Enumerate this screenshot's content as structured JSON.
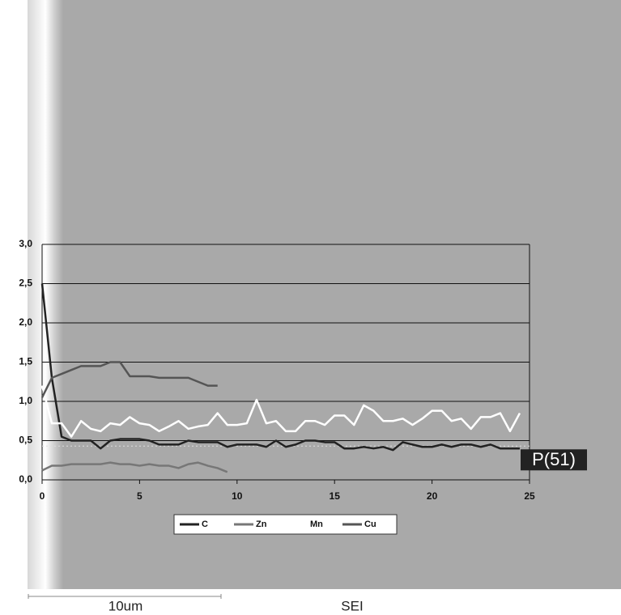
{
  "chart_data": {
    "type": "line",
    "x": [
      0,
      0.5,
      1,
      1.5,
      2,
      2.5,
      3,
      3.5,
      4,
      4.5,
      5,
      5.5,
      6,
      6.5,
      7,
      7.5,
      8,
      8.5,
      9,
      9.5,
      10,
      10.5,
      11,
      11.5,
      12,
      12.5,
      13,
      13.5,
      14,
      14.5,
      15,
      15.5,
      16,
      16.5,
      17,
      17.5,
      18,
      18.5,
      19,
      19.5,
      20,
      20.5,
      21,
      21.5,
      22,
      22.5,
      23,
      23.5,
      24,
      24.5
    ],
    "series": [
      {
        "name": "C",
        "color": "#222222",
        "values": [
          2.5,
          1.3,
          0.55,
          0.5,
          0.5,
          0.5,
          0.4,
          0.5,
          0.52,
          0.52,
          0.52,
          0.5,
          0.45,
          0.45,
          0.45,
          0.5,
          0.48,
          0.48,
          0.48,
          0.42,
          0.45,
          0.45,
          0.45,
          0.42,
          0.5,
          0.42,
          0.45,
          0.5,
          0.5,
          0.48,
          0.48,
          0.4,
          0.4,
          0.42,
          0.4,
          0.42,
          0.38,
          0.48,
          0.45,
          0.42,
          0.42,
          0.45,
          0.42,
          0.45,
          0.45,
          0.42,
          0.45,
          0.4,
          0.4,
          0.4
        ]
      },
      {
        "name": "Zn",
        "color": "#777777",
        "values": [
          0.12,
          0.18,
          0.18,
          0.2,
          0.2,
          0.2,
          0.2,
          0.22,
          0.2,
          0.2,
          0.18,
          0.2,
          0.18,
          0.18,
          0.15,
          0.2,
          0.22,
          0.18,
          0.15,
          0.1,
          null,
          null,
          null,
          null,
          null,
          null,
          null,
          null,
          null,
          null,
          null,
          null,
          null,
          null,
          null,
          null,
          null,
          null,
          null,
          null,
          null,
          null,
          null,
          null,
          null,
          null,
          null,
          null,
          null,
          null
        ]
      },
      {
        "name": "Mn",
        "color": "#ffffff",
        "values": [
          1.2,
          0.72,
          0.72,
          0.55,
          0.75,
          0.65,
          0.62,
          0.72,
          0.7,
          0.8,
          0.72,
          0.7,
          0.62,
          0.68,
          0.75,
          0.65,
          0.68,
          0.7,
          0.85,
          0.7,
          0.7,
          0.72,
          1.02,
          0.72,
          0.75,
          0.62,
          0.62,
          0.75,
          0.75,
          0.7,
          0.82,
          0.82,
          0.7,
          0.95,
          0.88,
          0.75,
          0.75,
          0.78,
          0.7,
          0.78,
          0.88,
          0.88,
          0.75,
          0.78,
          0.65,
          0.8,
          0.8,
          0.85,
          0.62,
          0.85
        ]
      },
      {
        "name": "Cu",
        "color": "#555555",
        "values": [
          1.05,
          1.3,
          1.35,
          1.4,
          1.45,
          1.45,
          1.45,
          1.5,
          1.5,
          1.32,
          1.32,
          1.32,
          1.3,
          1.3,
          1.3,
          1.3,
          1.25,
          1.2,
          1.2,
          null,
          null,
          null,
          null,
          null,
          null,
          null,
          null,
          null,
          null,
          null,
          null,
          null,
          null,
          null,
          null,
          null,
          null,
          null,
          null,
          null,
          null,
          null,
          null,
          null,
          null,
          null,
          null,
          null,
          null,
          null
        ]
      }
    ],
    "xlim": [
      0,
      25
    ],
    "xticks": [
      0,
      5,
      10,
      15,
      20,
      25
    ],
    "ylim": [
      0,
      3
    ],
    "yticks": [
      {
        "value": 0,
        "label": "0,0"
      },
      {
        "value": 0.5,
        "label": "0,5"
      },
      {
        "value": 1,
        "label": "1,0"
      },
      {
        "value": 1.5,
        "label": "1,5"
      },
      {
        "value": 2,
        "label": "2,0"
      },
      {
        "value": 2.5,
        "label": "2,5"
      },
      {
        "value": 3,
        "label": "3,0"
      }
    ],
    "grid": true,
    "marker": {
      "label": "P(51)",
      "value": 0.43
    },
    "image_labels": {
      "scale": "10um",
      "mode": "SEI"
    }
  }
}
